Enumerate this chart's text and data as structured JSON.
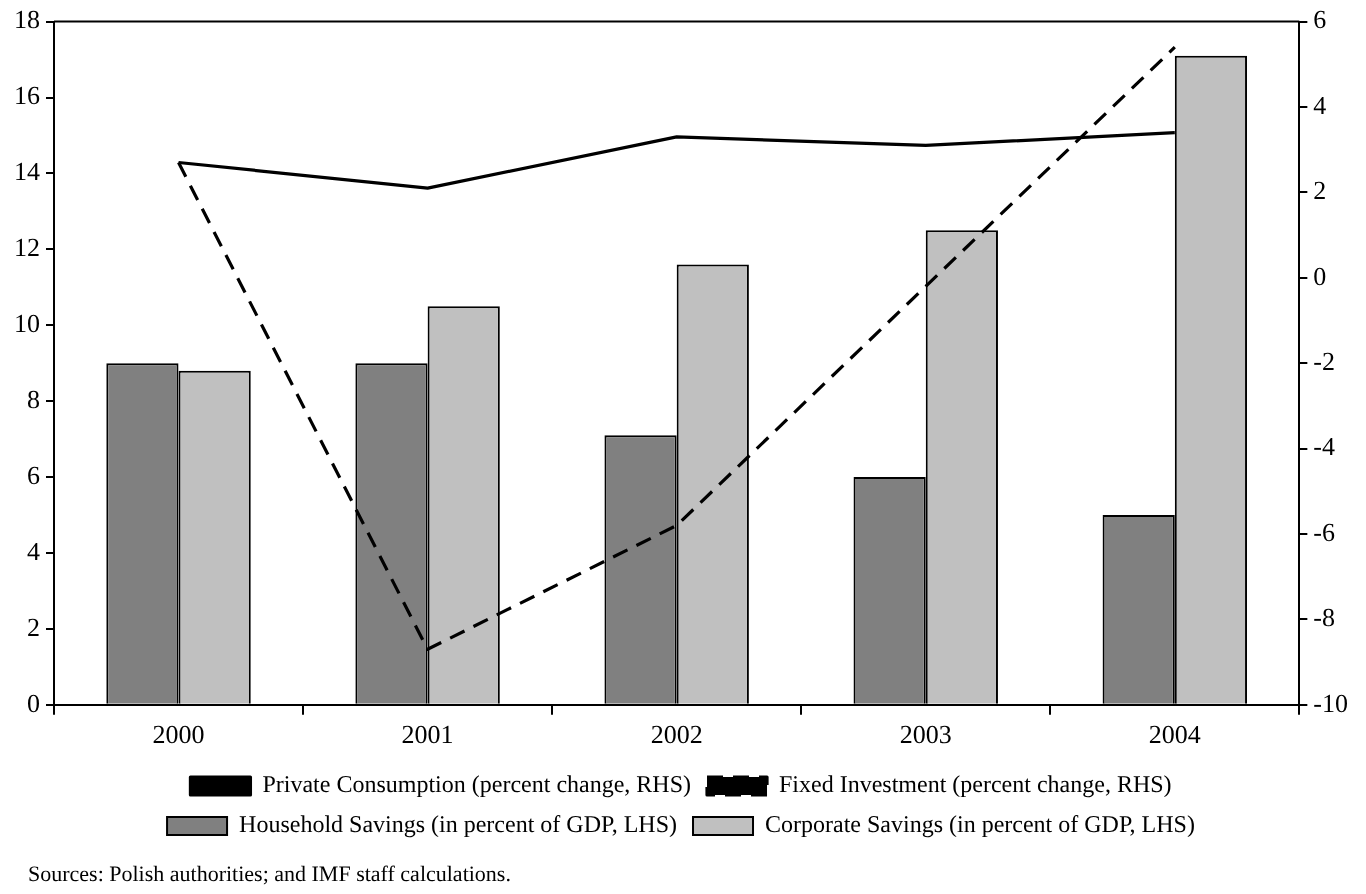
{
  "chart_data": {
    "type": "bar",
    "categories": [
      "2000",
      "2001",
      "2002",
      "2003",
      "2004"
    ],
    "series": [
      {
        "name": "Household Savings (in percent of GDP, LHS)",
        "color": "#808080",
        "values": [
          9.0,
          9.0,
          7.1,
          6.0,
          5.0
        ]
      },
      {
        "name": "Corporate Savings (in percent of GDP, LHS)",
        "color": "#c0c0c0",
        "values": [
          8.8,
          10.5,
          11.6,
          12.5,
          17.1
        ]
      },
      {
        "name": "Private Consumption (percent change, RHS)",
        "type": "line",
        "axis": "y2",
        "color": "#000000",
        "line_style": "solid",
        "values": [
          2.7,
          2.1,
          3.3,
          3.1,
          3.4
        ]
      },
      {
        "name": "Fixed Investment (percent change, RHS)",
        "type": "line",
        "axis": "y2",
        "color": "#000000",
        "line_style": "dashed",
        "values": [
          2.7,
          -8.7,
          -5.8,
          -0.2,
          5.4
        ]
      }
    ],
    "ylim": [
      0,
      18
    ],
    "yticks": [
      0,
      2,
      4,
      6,
      8,
      10,
      12,
      14,
      16,
      18
    ],
    "y2lim": [
      -10,
      6
    ],
    "y2ticks": [
      -10,
      -8,
      -6,
      -4,
      -2,
      0,
      2,
      4,
      6
    ],
    "grid": false,
    "legend": "bottom",
    "marker": "none",
    "annotations": [
      "Sources: Polish authorities; and IMF staff calculations."
    ]
  }
}
